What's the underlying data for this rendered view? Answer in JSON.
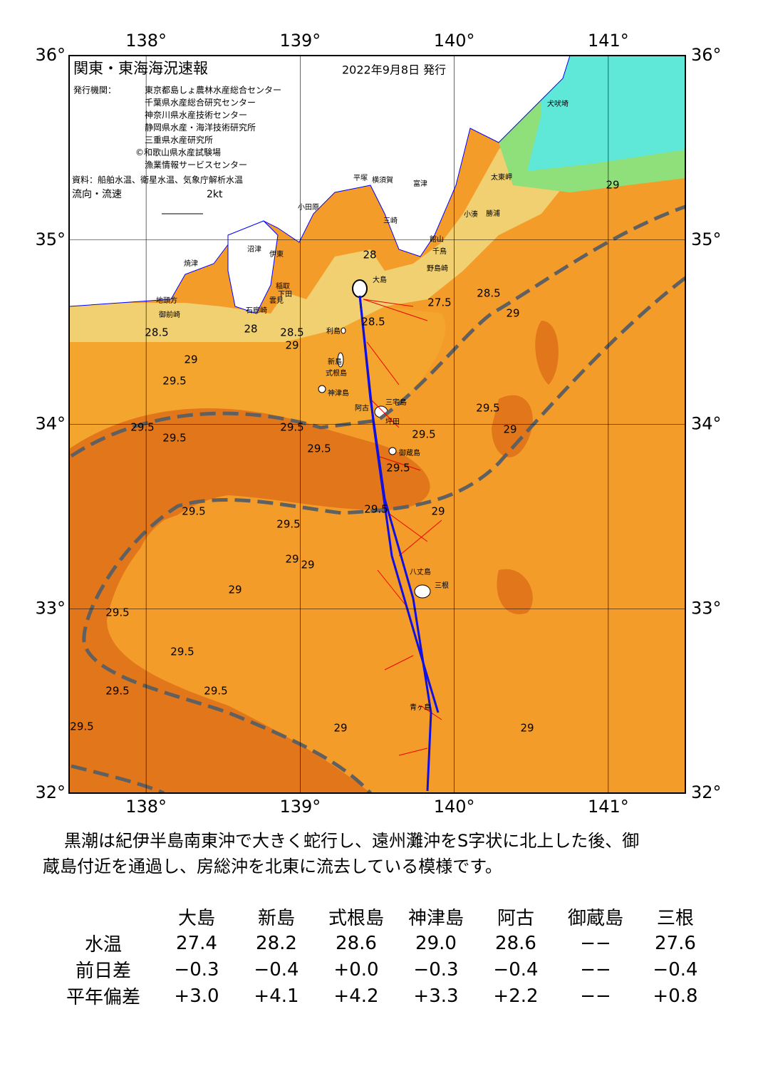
{
  "header": {
    "title": "関東・東海海況速報",
    "date": "2022年9月8日 発行",
    "issuer_label": "発行機関：",
    "issuers": [
      "東京都島しょ農林水産総合センター",
      "千葉県水産総合研究センター",
      "神奈川県水産技術センター",
      "静岡県水産・海洋技術研究所",
      "三重県水産研究所",
      "©和歌山県水産試験場",
      "漁業情報サービスセンター"
    ],
    "source": "資料：船舶水温、衛星水温、気象庁解析水温",
    "legend_label": "流向・流速",
    "legend_speed": "2kt"
  },
  "map": {
    "lon_ticks": [
      {
        "value": 138,
        "label": "138°"
      },
      {
        "value": 139,
        "label": "139°"
      },
      {
        "value": 140,
        "label": "140°"
      },
      {
        "value": 141,
        "label": "141°"
      }
    ],
    "lat_ticks": [
      {
        "value": 36,
        "label": "36°"
      },
      {
        "value": 35,
        "label": "35°"
      },
      {
        "value": 34,
        "label": "34°"
      },
      {
        "value": 33,
        "label": "33°"
      },
      {
        "value": 32,
        "label": "32°"
      }
    ],
    "lonlim": [
      137.5,
      141.5
    ],
    "latlim": [
      32,
      36
    ],
    "place_names": [
      "大島",
      "利島",
      "新島",
      "式根島",
      "神津島",
      "三宅島",
      "阿古",
      "坪田",
      "御蔵島",
      "八丈島",
      "青ヶ島",
      "三根",
      "小田原",
      "平塚",
      "横須賀",
      "富津",
      "三崎",
      "館山",
      "千鳥",
      "野島崎",
      "太東岬",
      "犬吠埼",
      "勝浦",
      "小湊",
      "石廊崎",
      "下田",
      "稲取",
      "伊東",
      "沼津",
      "焼津",
      "御前崎",
      "地頭方",
      "雲見"
    ],
    "contour_labels": [
      "28.5",
      "28",
      "28.5",
      "29",
      "29",
      "29.5",
      "29.5",
      "29.5",
      "29.5",
      "29.5",
      "29.5",
      "29.5",
      "29",
      "29",
      "29.5",
      "29.5",
      "29.5",
      "29",
      "29.5",
      "29.5",
      "29.5",
      "29",
      "29",
      "29",
      "28.5",
      "29",
      "29.5",
      "29",
      "29",
      "28",
      "28.5",
      "27.5",
      "29.5",
      "29.5"
    ]
  },
  "summary": [
    "黒潮は紀伊半島南東沖で大きく蛇行し、遠州灘沖をS字状に北上した後、御",
    "蔵島付近を通過し、房総沖を北東に流去している模様です。"
  ],
  "table": {
    "columns": [
      "大島",
      "新島",
      "式根島",
      "神津島",
      "阿古",
      "御蔵島",
      "三根"
    ],
    "rows": [
      [
        "水温",
        "27.4",
        "28.2",
        "28.6",
        "29.0",
        "28.6",
        "−−",
        "27.6"
      ],
      [
        "前日差",
        "−0.3",
        "−0.4",
        "+0.0",
        "−0.3",
        "−0.4",
        "−−",
        "−0.4"
      ],
      [
        "平年偏差",
        "+3.0",
        "+4.1",
        "+4.2",
        "+3.3",
        "+2.2",
        "−−",
        "+0.8"
      ]
    ]
  }
}
